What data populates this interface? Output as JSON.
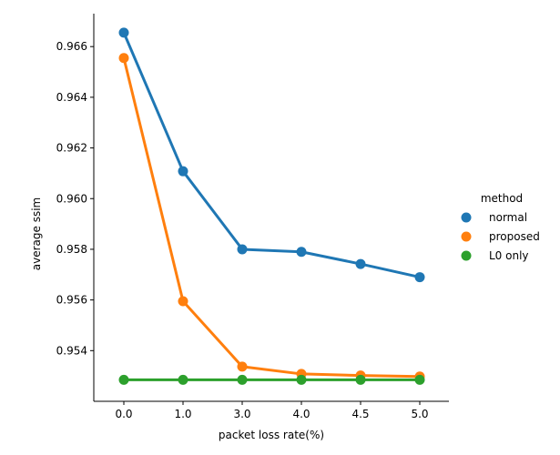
{
  "chart_data": {
    "type": "line",
    "title": "",
    "xlabel": "packet loss rate(%)",
    "ylabel": "average ssim",
    "categories": [
      "0.0",
      "1.0",
      "3.0",
      "4.0",
      "4.5",
      "5.0"
    ],
    "ylim": [
      0.952,
      0.9673
    ],
    "yticks": [
      "0.954",
      "0.956",
      "0.958",
      "0.960",
      "0.962",
      "0.964",
      "0.966"
    ],
    "grid": false,
    "legend": {
      "title": "method",
      "placement": "right"
    },
    "series": [
      {
        "name": "normal",
        "color": "#1f77b4",
        "values": [
          0.96655,
          0.96108,
          0.958,
          0.9579,
          0.95742,
          0.9569
        ],
        "err": [
          5e-05,
          0.00018,
          4e-05,
          4e-05,
          4e-05,
          4e-05
        ]
      },
      {
        "name": "proposed",
        "color": "#ff7f0e",
        "values": [
          0.96555,
          0.95595,
          0.95337,
          0.95308,
          0.95302,
          0.95298
        ],
        "err": [
          4e-05,
          6e-05,
          4e-05,
          4e-05,
          3e-05,
          3e-05
        ]
      },
      {
        "name": "L0 only",
        "color": "#2ca02c",
        "values": [
          0.95285,
          0.95285,
          0.95285,
          0.95285,
          0.95285,
          0.95285
        ],
        "err": [
          2e-05,
          2e-05,
          2e-05,
          2e-05,
          2e-05,
          2e-05
        ]
      }
    ]
  }
}
